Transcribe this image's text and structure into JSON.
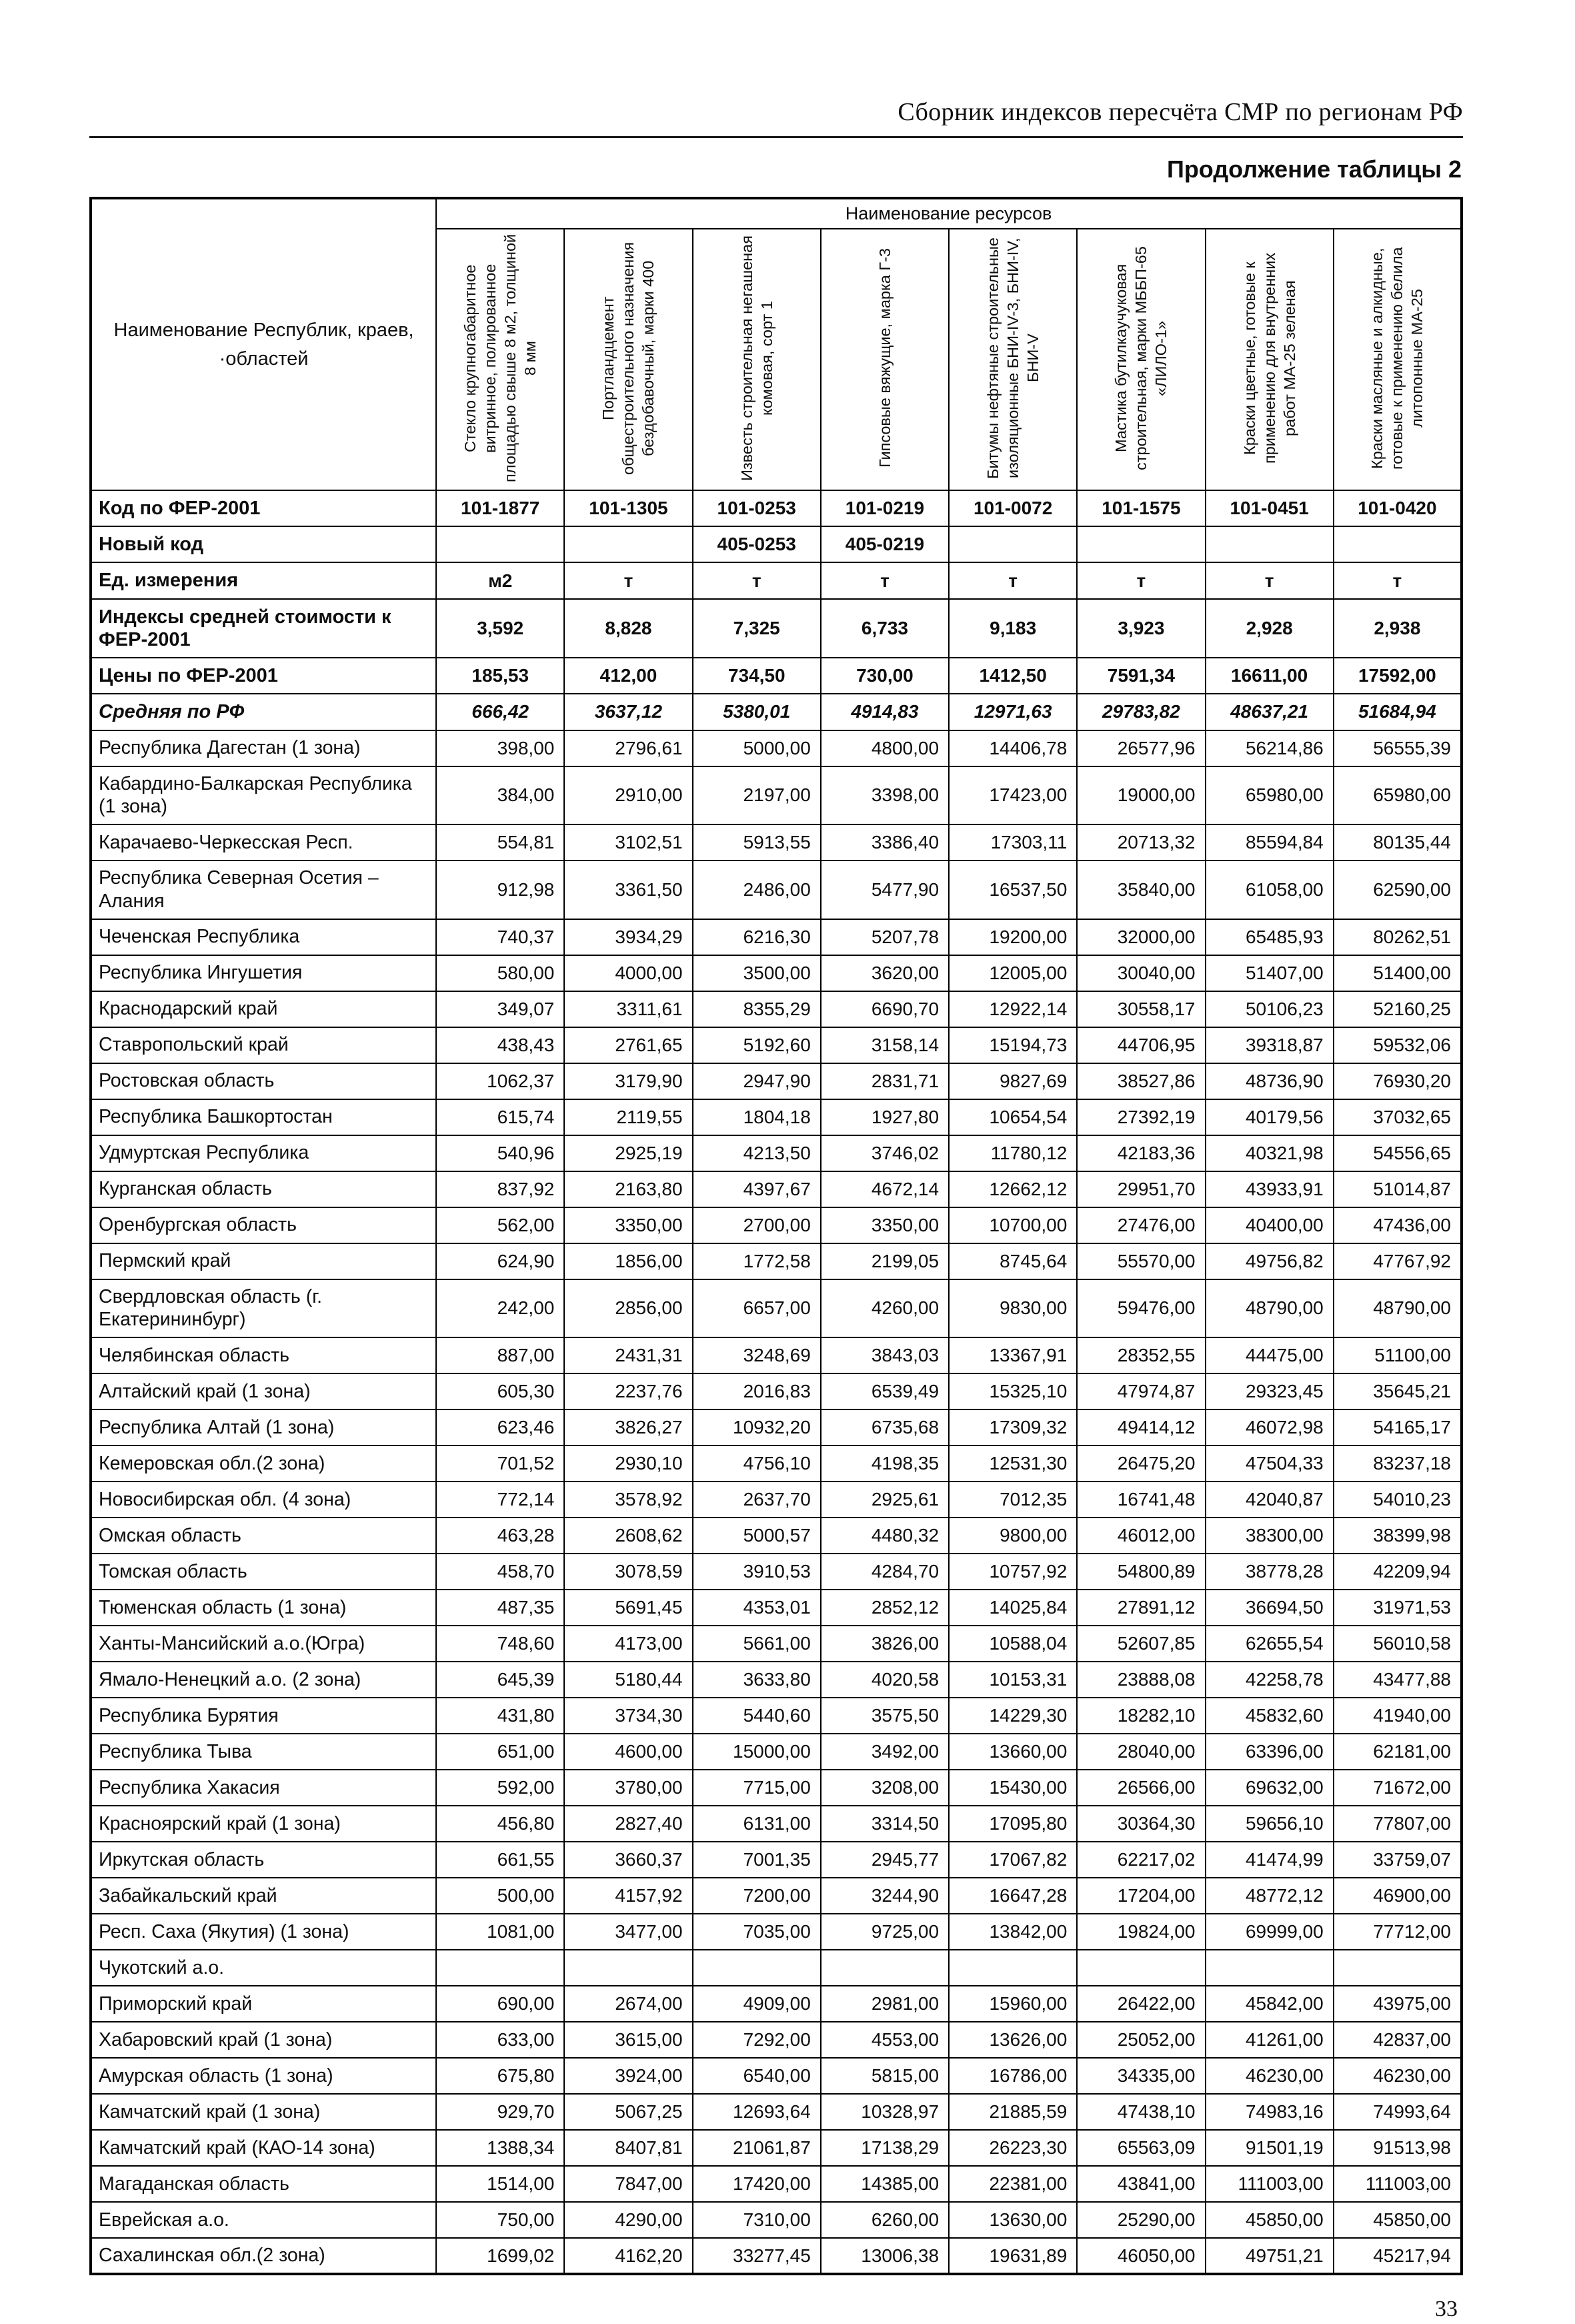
{
  "page": {
    "header_title": "Сборник индексов пересчёта СМР  по регионам РФ",
    "table_caption": "Продолжение таблицы 2",
    "page_number": "33"
  },
  "table": {
    "resources_header": "Наименование ресурсов",
    "row_header_label": "Наименование Республик, краев, ·областей",
    "columns": [
      "Стекло крупногабаритное витринное, полированное площадью свыше 8 м2, толщиной 8 мм",
      "Портландцемент общестроительного назначения бездобавочный, марки 400",
      "Известь строительная негашеная комовая, сорт 1",
      "Гипсовые вяжущие, марка Г-3",
      "Битумы нефтяные строительные изоляционные БНИ-IV-3, БНИ-IV, БНИ-V",
      "Мастика бутилкаучуковая строительная, марки МББП-65 «ЛИЛО-1»",
      "Краски цветные, готовые к применению для внутренних работ МА-25 зеленая",
      "Краски масляные и алкидные, готовые к применению белила литопонные МА-25"
    ],
    "meta_rows": [
      {
        "label": "Код по ФЕР-2001",
        "style": "bold",
        "values": [
          "101-1877",
          "101-1305",
          "101-0253",
          "101-0219",
          "101-0072",
          "101-1575",
          "101-0451",
          "101-0420"
        ]
      },
      {
        "label": "Новый код",
        "style": "bold",
        "values": [
          "",
          "",
          "405-0253",
          "405-0219",
          "",
          "",
          "",
          ""
        ]
      },
      {
        "label": "Ед. измерения",
        "style": "bold",
        "values": [
          "м2",
          "т",
          "т",
          "т",
          "т",
          "т",
          "т",
          "т"
        ]
      },
      {
        "label": "Индексы средней стоимости к ФЕР-2001",
        "style": "bold",
        "values": [
          "3,592",
          "8,828",
          "7,325",
          "6,733",
          "9,183",
          "3,923",
          "2,928",
          "2,938"
        ]
      },
      {
        "label": "Цены по ФЕР-2001",
        "style": "bold",
        "values": [
          "185,53",
          "412,00",
          "734,50",
          "730,00",
          "1412,50",
          "7591,34",
          "16611,00",
          "17592,00"
        ]
      },
      {
        "label": "Средняя по РФ",
        "style": "bold-italic",
        "values": [
          "666,42",
          "3637,12",
          "5380,01",
          "4914,83",
          "12971,63",
          "29783,82",
          "48637,21",
          "51684,94"
        ]
      }
    ],
    "region_rows": [
      {
        "label": "Республика Дагестан (1 зона)",
        "values": [
          "398,00",
          "2796,61",
          "5000,00",
          "4800,00",
          "14406,78",
          "26577,96",
          "56214,86",
          "56555,39"
        ]
      },
      {
        "label": "Кабардино-Балкарская Республика (1 зона)",
        "values": [
          "384,00",
          "2910,00",
          "2197,00",
          "3398,00",
          "17423,00",
          "19000,00",
          "65980,00",
          "65980,00"
        ]
      },
      {
        "label": "Карачаево-Черкесская Респ.",
        "values": [
          "554,81",
          "3102,51",
          "5913,55",
          "3386,40",
          "17303,11",
          "20713,32",
          "85594,84",
          "80135,44"
        ]
      },
      {
        "label": "Республика Северная Осетия – Алания",
        "values": [
          "912,98",
          "3361,50",
          "2486,00",
          "5477,90",
          "16537,50",
          "35840,00",
          "61058,00",
          "62590,00"
        ]
      },
      {
        "label": "Чеченская Республика",
        "values": [
          "740,37",
          "3934,29",
          "6216,30",
          "5207,78",
          "19200,00",
          "32000,00",
          "65485,93",
          "80262,51"
        ]
      },
      {
        "label": "Республика Ингушетия",
        "values": [
          "580,00",
          "4000,00",
          "3500,00",
          "3620,00",
          "12005,00",
          "30040,00",
          "51407,00",
          "51400,00"
        ]
      },
      {
        "label": "Краснодарский край",
        "values": [
          "349,07",
          "3311,61",
          "8355,29",
          "6690,70",
          "12922,14",
          "30558,17",
          "50106,23",
          "52160,25"
        ]
      },
      {
        "label": "Ставропольский край",
        "values": [
          "438,43",
          "2761,65",
          "5192,60",
          "3158,14",
          "15194,73",
          "44706,95",
          "39318,87",
          "59532,06"
        ]
      },
      {
        "label": "Ростовская область",
        "values": [
          "1062,37",
          "3179,90",
          "2947,90",
          "2831,71",
          "9827,69",
          "38527,86",
          "48736,90",
          "76930,20"
        ]
      },
      {
        "label": "Республика Башкортостан",
        "values": [
          "615,74",
          "2119,55",
          "1804,18",
          "1927,80",
          "10654,54",
          "27392,19",
          "40179,56",
          "37032,65"
        ]
      },
      {
        "label": "Удмуртская Республика",
        "values": [
          "540,96",
          "2925,19",
          "4213,50",
          "3746,02",
          "11780,12",
          "42183,36",
          "40321,98",
          "54556,65"
        ]
      },
      {
        "label": "Курганская область",
        "values": [
          "837,92",
          "2163,80",
          "4397,67",
          "4672,14",
          "12662,12",
          "29951,70",
          "43933,91",
          "51014,87"
        ]
      },
      {
        "label": "Оренбургская область",
        "values": [
          "562,00",
          "3350,00",
          "2700,00",
          "3350,00",
          "10700,00",
          "27476,00",
          "40400,00",
          "47436,00"
        ]
      },
      {
        "label": "Пермский край",
        "values": [
          "624,90",
          "1856,00",
          "1772,58",
          "2199,05",
          "8745,64",
          "55570,00",
          "49756,82",
          "47767,92"
        ]
      },
      {
        "label": "Свердловская область (г. Екатерининбург)",
        "values": [
          "242,00",
          "2856,00",
          "6657,00",
          "4260,00",
          "9830,00",
          "59476,00",
          "48790,00",
          "48790,00"
        ]
      },
      {
        "label": "Челябинская область",
        "values": [
          "887,00",
          "2431,31",
          "3248,69",
          "3843,03",
          "13367,91",
          "28352,55",
          "44475,00",
          "51100,00"
        ]
      },
      {
        "label": "Алтайский край (1 зона)",
        "values": [
          "605,30",
          "2237,76",
          "2016,83",
          "6539,49",
          "15325,10",
          "47974,87",
          "29323,45",
          "35645,21"
        ]
      },
      {
        "label": "Республика Алтай (1 зона)",
        "values": [
          "623,46",
          "3826,27",
          "10932,20",
          "6735,68",
          "17309,32",
          "49414,12",
          "46072,98",
          "54165,17"
        ]
      },
      {
        "label": "Кемеровская обл.(2 зона)",
        "values": [
          "701,52",
          "2930,10",
          "4756,10",
          "4198,35",
          "12531,30",
          "26475,20",
          "47504,33",
          "83237,18"
        ]
      },
      {
        "label": "Новосибирская обл. (4 зона)",
        "values": [
          "772,14",
          "3578,92",
          "2637,70",
          "2925,61",
          "7012,35",
          "16741,48",
          "42040,87",
          "54010,23"
        ]
      },
      {
        "label": "Омская область",
        "values": [
          "463,28",
          "2608,62",
          "5000,57",
          "4480,32",
          "9800,00",
          "46012,00",
          "38300,00",
          "38399,98"
        ]
      },
      {
        "label": "Томская область",
        "values": [
          "458,70",
          "3078,59",
          "3910,53",
          "4284,70",
          "10757,92",
          "54800,89",
          "38778,28",
          "42209,94"
        ]
      },
      {
        "label": "Тюменская область (1 зона)",
        "values": [
          "487,35",
          "5691,45",
          "4353,01",
          "2852,12",
          "14025,84",
          "27891,12",
          "36694,50",
          "31971,53"
        ]
      },
      {
        "label": "Ханты-Мансийский а.о.(Югра)",
        "values": [
          "748,60",
          "4173,00",
          "5661,00",
          "3826,00",
          "10588,04",
          "52607,85",
          "62655,54",
          "56010,58"
        ]
      },
      {
        "label": "Ямало-Ненецкий а.о. (2 зона)",
        "values": [
          "645,39",
          "5180,44",
          "3633,80",
          "4020,58",
          "10153,31",
          "23888,08",
          "42258,78",
          "43477,88"
        ]
      },
      {
        "label": "Республика Бурятия",
        "values": [
          "431,80",
          "3734,30",
          "5440,60",
          "3575,50",
          "14229,30",
          "18282,10",
          "45832,60",
          "41940,00"
        ]
      },
      {
        "label": "Республика Тыва",
        "values": [
          "651,00",
          "4600,00",
          "15000,00",
          "3492,00",
          "13660,00",
          "28040,00",
          "63396,00",
          "62181,00"
        ]
      },
      {
        "label": "Республика Хакасия",
        "values": [
          "592,00",
          "3780,00",
          "7715,00",
          "3208,00",
          "15430,00",
          "26566,00",
          "69632,00",
          "71672,00"
        ]
      },
      {
        "label": "Красноярский край (1 зона)",
        "values": [
          "456,80",
          "2827,40",
          "6131,00",
          "3314,50",
          "17095,80",
          "30364,30",
          "59656,10",
          "77807,00"
        ]
      },
      {
        "label": "Иркутская область",
        "values": [
          "661,55",
          "3660,37",
          "7001,35",
          "2945,77",
          "17067,82",
          "62217,02",
          "41474,99",
          "33759,07"
        ]
      },
      {
        "label": "Забайкальский край",
        "values": [
          "500,00",
          "4157,92",
          "7200,00",
          "3244,90",
          "16647,28",
          "17204,00",
          "48772,12",
          "46900,00"
        ]
      },
      {
        "label": "Респ. Саха (Якутия) (1 зона)",
        "values": [
          "1081,00",
          "3477,00",
          "7035,00",
          "9725,00",
          "13842,00",
          "19824,00",
          "69999,00",
          "77712,00"
        ]
      },
      {
        "label": "Чукотский а.о.",
        "values": [
          "",
          "",
          "",
          "",
          "",
          "",
          "",
          ""
        ]
      },
      {
        "label": "Приморский край",
        "values": [
          "690,00",
          "2674,00",
          "4909,00",
          "2981,00",
          "15960,00",
          "26422,00",
          "45842,00",
          "43975,00"
        ]
      },
      {
        "label": "Хабаровский край (1 зона)",
        "values": [
          "633,00",
          "3615,00",
          "7292,00",
          "4553,00",
          "13626,00",
          "25052,00",
          "41261,00",
          "42837,00"
        ]
      },
      {
        "label": "Амурская область (1 зона)",
        "values": [
          "675,80",
          "3924,00",
          "6540,00",
          "5815,00",
          "16786,00",
          "34335,00",
          "46230,00",
          "46230,00"
        ]
      },
      {
        "label": "Камчатский край (1 зона)",
        "values": [
          "929,70",
          "5067,25",
          "12693,64",
          "10328,97",
          "21885,59",
          "47438,10",
          "74983,16",
          "74993,64"
        ]
      },
      {
        "label": "Камчатский край (КАО-14 зона)",
        "values": [
          "1388,34",
          "8407,81",
          "21061,87",
          "17138,29",
          "26223,30",
          "65563,09",
          "91501,19",
          "91513,98"
        ]
      },
      {
        "label": "Магаданская область",
        "values": [
          "1514,00",
          "7847,00",
          "17420,00",
          "14385,00",
          "22381,00",
          "43841,00",
          "111003,00",
          "111003,00"
        ]
      },
      {
        "label": "Еврейская а.о.",
        "values": [
          "750,00",
          "4290,00",
          "7310,00",
          "6260,00",
          "13630,00",
          "25290,00",
          "45850,00",
          "45850,00"
        ]
      },
      {
        "label": "Сахалинская обл.(2 зона)",
        "values": [
          "1699,02",
          "4162,20",
          "33277,45",
          "13006,38",
          "19631,89",
          "46050,00",
          "49751,21",
          "45217,94"
        ]
      }
    ]
  }
}
